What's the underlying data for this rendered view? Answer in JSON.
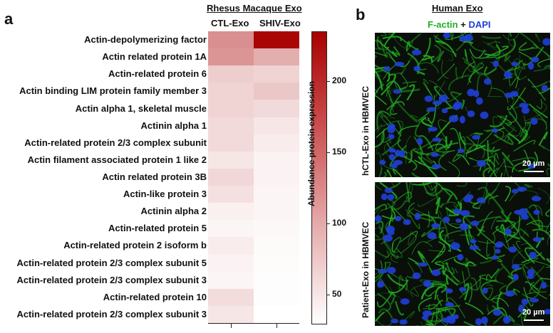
{
  "panel_a": {
    "letter": "a",
    "group_title": "Rhesus Macaque Exo",
    "columns": [
      "CTL-Exo",
      "SHIV-Exo"
    ],
    "colorbar_label": "Abundance protein expression",
    "colorbar_ticks": [
      "50",
      "100",
      "150",
      "200"
    ]
  },
  "panel_b": {
    "letter": "b",
    "title": "Human Exo",
    "stain_factin": "F-actin",
    "stain_plus": "+",
    "stain_dapi": "DAPI",
    "image1_label": "hCTL-Exo in HBMVEC",
    "image2_label": "Patient-Exo in HBMVEC",
    "scalebar": "20 µm",
    "colors": {
      "factin": "#22b022",
      "dapi": "#1f3fd6"
    }
  },
  "chart_data": {
    "type": "heatmap",
    "title": "Rhesus Macaque Exo",
    "xlabel": "",
    "ylabel": "",
    "colorbar_label": "Abundance protein expression",
    "color_range": [
      30,
      235
    ],
    "colorscale": [
      "#ffffff",
      "#a80000"
    ],
    "columns": [
      "CTL-Exo",
      "SHIV-Exo"
    ],
    "rows": [
      "Actin-depolymerizing factor",
      "Actin related protein 1A",
      "Actin-related protein 6",
      "Actin binding LIM protein family member 3",
      "Actin alpha 1, skeletal muscle",
      "Actinin alpha 1",
      "Actin-related protein 2/3 complex subunit",
      "Actin filament associated protein 1 like 2",
      "Actin related protein 3B",
      "Actin-like protein 3",
      "Actinin alpha 2",
      "Actin-related protein 5",
      "Actin-related protein 2 isoform b",
      "Actin-related protein 2/3 complex subunit 5",
      "Actin-related protein 2/3 complex subunit 3",
      "Actin-related protein 10",
      "Actin-related protein 2/3 complex subunit 3"
    ],
    "values": [
      [
        120,
        230
      ],
      [
        115,
        95
      ],
      [
        70,
        65
      ],
      [
        65,
        75
      ],
      [
        65,
        60
      ],
      [
        60,
        50
      ],
      [
        60,
        45
      ],
      [
        50,
        40
      ],
      [
        62,
        40
      ],
      [
        55,
        38
      ],
      [
        42,
        38
      ],
      [
        38,
        36
      ],
      [
        45,
        34
      ],
      [
        40,
        33
      ],
      [
        38,
        32
      ],
      [
        58,
        32
      ],
      [
        50,
        30
      ]
    ]
  }
}
